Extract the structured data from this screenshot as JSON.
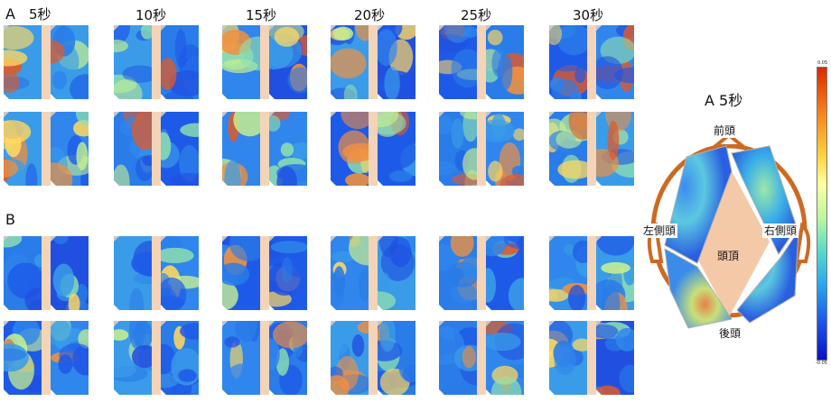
{
  "sections": [
    {
      "label": "A"
    },
    {
      "label": "B"
    }
  ],
  "time_labels": [
    "5秒",
    "10秒",
    "15秒",
    "20秒",
    "25秒",
    "30秒"
  ],
  "head_view": {
    "title": "A 5秒",
    "front": "前頭",
    "left": "左側頭",
    "top": "頭頂",
    "right": "右側頭",
    "back": "後頭"
  },
  "colorbar": {
    "top_label": "0.05",
    "bottom_label": "-0.05",
    "colors": [
      "#d92a00",
      "#ffd23a",
      "#b8f5a0",
      "#2aa8f0",
      "#0a10c8"
    ]
  }
}
